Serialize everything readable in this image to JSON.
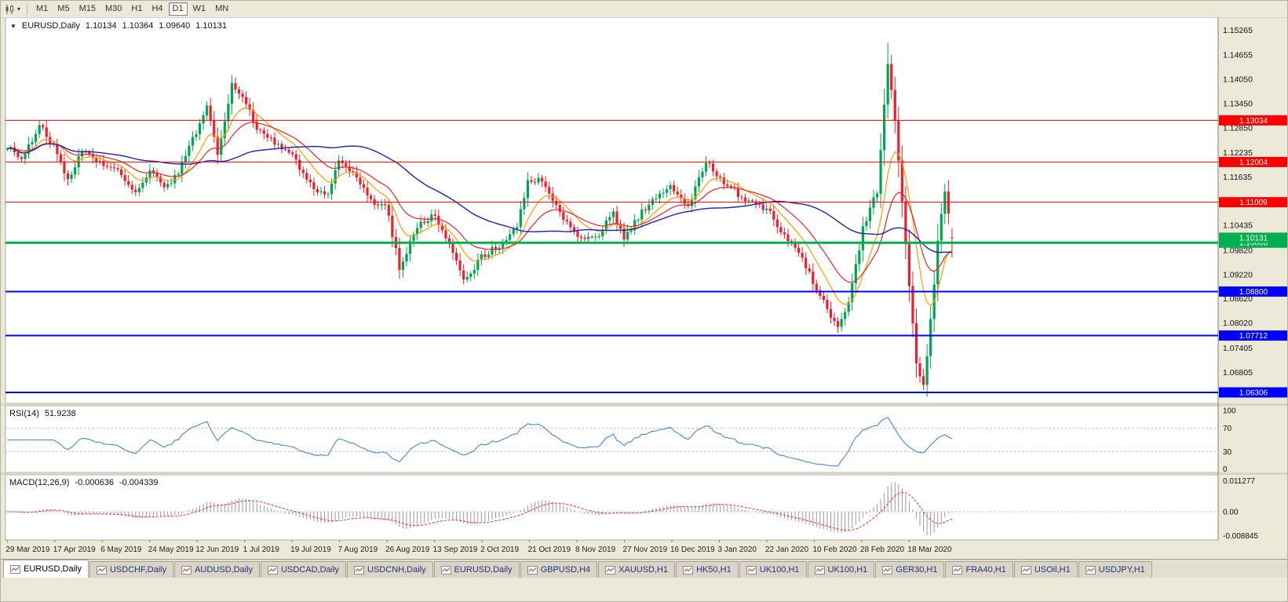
{
  "toolbar": {
    "chart_type_icon": "candlestick-chart-icon",
    "timeframes": [
      {
        "label": "M1",
        "active": false
      },
      {
        "label": "M5",
        "active": false
      },
      {
        "label": "M15",
        "active": false
      },
      {
        "label": "M30",
        "active": false
      },
      {
        "label": "H1",
        "active": false
      },
      {
        "label": "H4",
        "active": false
      },
      {
        "label": "D1",
        "active": true
      },
      {
        "label": "W1",
        "active": false
      },
      {
        "label": "MN",
        "active": false
      }
    ]
  },
  "chart_header": {
    "symbol": "EURUSD,Daily",
    "open": "1.10134",
    "high": "1.10364",
    "low": "1.09640",
    "close": "1.10131"
  },
  "indicators": {
    "rsi": {
      "label": "RSI(14)",
      "value": "51.9238",
      "line_color": "#4a86c8",
      "axis_labels": [
        "100",
        "70",
        "30",
        "0"
      ]
    },
    "macd": {
      "label": "MACD(12,26,9)",
      "value_main": "-0.000636",
      "value_signal": "-0.004339",
      "histogram_color": "#9a9a9a",
      "signal_color": "#e03030",
      "axis_labels": [
        "0.011277",
        "0.00",
        "-0.008845"
      ]
    }
  },
  "chart_data": {
    "type": "candlestick",
    "symbol": "EURUSD",
    "timeframe": "Daily",
    "ohlc_current": {
      "open": 1.10134,
      "high": 1.10364,
      "low": 1.0964,
      "close": 1.10131
    },
    "price_range": {
      "top": 1.1535,
      "bottom": 1.0615
    },
    "price_axis_ticks": [
      1.15265,
      1.14655,
      1.1405,
      1.1345,
      1.1285,
      1.12235,
      1.11635,
      1.11035,
      1.10435,
      1.0982,
      1.0922,
      1.0862,
      1.0802,
      1.07405,
      1.06805
    ],
    "x_labels": [
      "29 Mar 2019",
      "17 Apr 2019",
      "6 May 2019",
      "24 May 2019",
      "12 Jun 2019",
      "1 Jul 2019",
      "19 Jul 2019",
      "7 Aug 2019",
      "26 Aug 2019",
      "13 Sep 2019",
      "2 Oct 2019",
      "21 Oct 2019",
      "8 Nov 2019",
      "27 Nov 2019",
      "16 Dec 2019",
      "3 Jan 2020",
      "22 Jan 2020",
      "10 Feb 2020",
      "28 Feb 2020",
      "18 Mar 2020"
    ],
    "key_levels": [
      {
        "price": 1.13034,
        "label": "1.13034",
        "color": "#ff0000",
        "width": 1
      },
      {
        "price": 1.12004,
        "label": "1.12004",
        "color": "#ff0000",
        "width": 1
      },
      {
        "price": 1.11009,
        "label": "1.11009",
        "color": "#ff0000",
        "width": 1
      },
      {
        "price": 1.10008,
        "label": "1.10008",
        "color": "#00b050",
        "width": 3
      },
      {
        "price": 1.088,
        "label": "1.08800",
        "color": "#0000ff",
        "width": 2
      },
      {
        "price": 1.07712,
        "label": "1.07712",
        "color": "#0000ff",
        "width": 2
      },
      {
        "price": 1.06306,
        "label": "1.06306",
        "color": "#0000ff",
        "width": 2
      }
    ],
    "current_price": {
      "value": 1.10131,
      "label": "1.10131",
      "color": "#00b050"
    },
    "candles": {
      "count": 266,
      "x_fill": 0.782,
      "up_color": "#00a550",
      "down_color": "#f01e28",
      "anchors": [
        [
          0,
          1.124
        ],
        [
          4,
          1.1205
        ],
        [
          9,
          1.1292
        ],
        [
          13,
          1.124
        ],
        [
          17,
          1.1155
        ],
        [
          21,
          1.1225
        ],
        [
          26,
          1.12
        ],
        [
          31,
          1.1175
        ],
        [
          36,
          1.112
        ],
        [
          40,
          1.1185
        ],
        [
          44,
          1.113
        ],
        [
          48,
          1.1175
        ],
        [
          52,
          1.1255
        ],
        [
          56,
          1.134
        ],
        [
          59,
          1.1215
        ],
        [
          63,
          1.1388
        ],
        [
          66,
          1.1365
        ],
        [
          70,
          1.1285
        ],
        [
          75,
          1.125
        ],
        [
          80,
          1.1215
        ],
        [
          85,
          1.1145
        ],
        [
          90,
          1.1115
        ],
        [
          93,
          1.1205
        ],
        [
          98,
          1.1165
        ],
        [
          103,
          1.1095
        ],
        [
          106,
          1.11
        ],
        [
          110,
          1.094
        ],
        [
          115,
          1.104
        ],
        [
          120,
          1.107
        ],
        [
          124,
          1.1
        ],
        [
          128,
          1.0905
        ],
        [
          133,
          1.0965
        ],
        [
          138,
          1.0995
        ],
        [
          143,
          1.1045
        ],
        [
          146,
          1.115
        ],
        [
          150,
          1.116
        ],
        [
          155,
          1.107
        ],
        [
          160,
          1.102
        ],
        [
          165,
          1.101
        ],
        [
          170,
          1.1075
        ],
        [
          173,
          1.1005
        ],
        [
          178,
          1.108
        ],
        [
          182,
          1.111
        ],
        [
          186,
          1.114
        ],
        [
          191,
          1.109
        ],
        [
          196,
          1.12
        ],
        [
          200,
          1.116
        ],
        [
          205,
          1.112
        ],
        [
          210,
          1.1095
        ],
        [
          213,
          1.1085
        ],
        [
          218,
          1.1015
        ],
        [
          222,
          1.0975
        ],
        [
          226,
          1.0905
        ],
        [
          230,
          1.0835
        ],
        [
          233,
          1.079
        ],
        [
          236,
          1.0855
        ],
        [
          240,
          1.1035
        ],
        [
          244,
          1.113
        ],
        [
          247,
          1.145
        ],
        [
          249,
          1.13
        ],
        [
          251,
          1.1095
        ],
        [
          253,
          1.09
        ],
        [
          255,
          1.0695
        ],
        [
          257,
          1.065
        ],
        [
          259,
          1.0805
        ],
        [
          261,
          1.1005
        ],
        [
          263,
          1.113
        ],
        [
          265,
          1.10131
        ]
      ],
      "extremes": [
        {
          "index": 233,
          "type": "low",
          "price": 1.0778
        },
        {
          "index": 247,
          "type": "high",
          "price": 1.1495
        },
        {
          "index": 257,
          "type": "low",
          "price": 1.0636
        }
      ]
    },
    "moving_averages": [
      {
        "period": 10,
        "method": "ema",
        "color": "#ff9c00",
        "width": 1.2
      },
      {
        "period": 21,
        "method": "ema",
        "color": "#e02828",
        "width": 1.2
      },
      {
        "period": 50,
        "method": "sma",
        "color": "#2020b0",
        "width": 1.4
      }
    ],
    "rsi": {
      "period": 14,
      "current": 51.9238,
      "levels": [
        70,
        30
      ]
    },
    "macd": {
      "fast": 12,
      "slow": 26,
      "signal": 9,
      "current_macd": -0.000636,
      "current_signal": -0.004339
    },
    "macd_scale": {
      "max": 0.011277,
      "min": -0.008845
    }
  },
  "tabs": [
    {
      "label": "EURUSD,Daily",
      "active": true
    },
    {
      "label": "USDCHF,Daily",
      "active": false
    },
    {
      "label": "AUDUSD,Daily",
      "active": false
    },
    {
      "label": "USDCAD,Daily",
      "active": false
    },
    {
      "label": "USDCNH,Daily",
      "active": false
    },
    {
      "label": "EURUSD,Daily",
      "active": false
    },
    {
      "label": "GBPUSD,H4",
      "active": false
    },
    {
      "label": "XAUUSD,H1",
      "active": false
    },
    {
      "label": "HK50,H1",
      "active": false
    },
    {
      "label": "UK100,H1",
      "active": false
    },
    {
      "label": "UK100,H1",
      "active": false
    },
    {
      "label": "GER30,H1",
      "active": false
    },
    {
      "label": "FRA40,H1",
      "active": false
    },
    {
      "label": "USOil,H1",
      "active": false
    },
    {
      "label": "USDJPY,H1",
      "active": false
    }
  ]
}
